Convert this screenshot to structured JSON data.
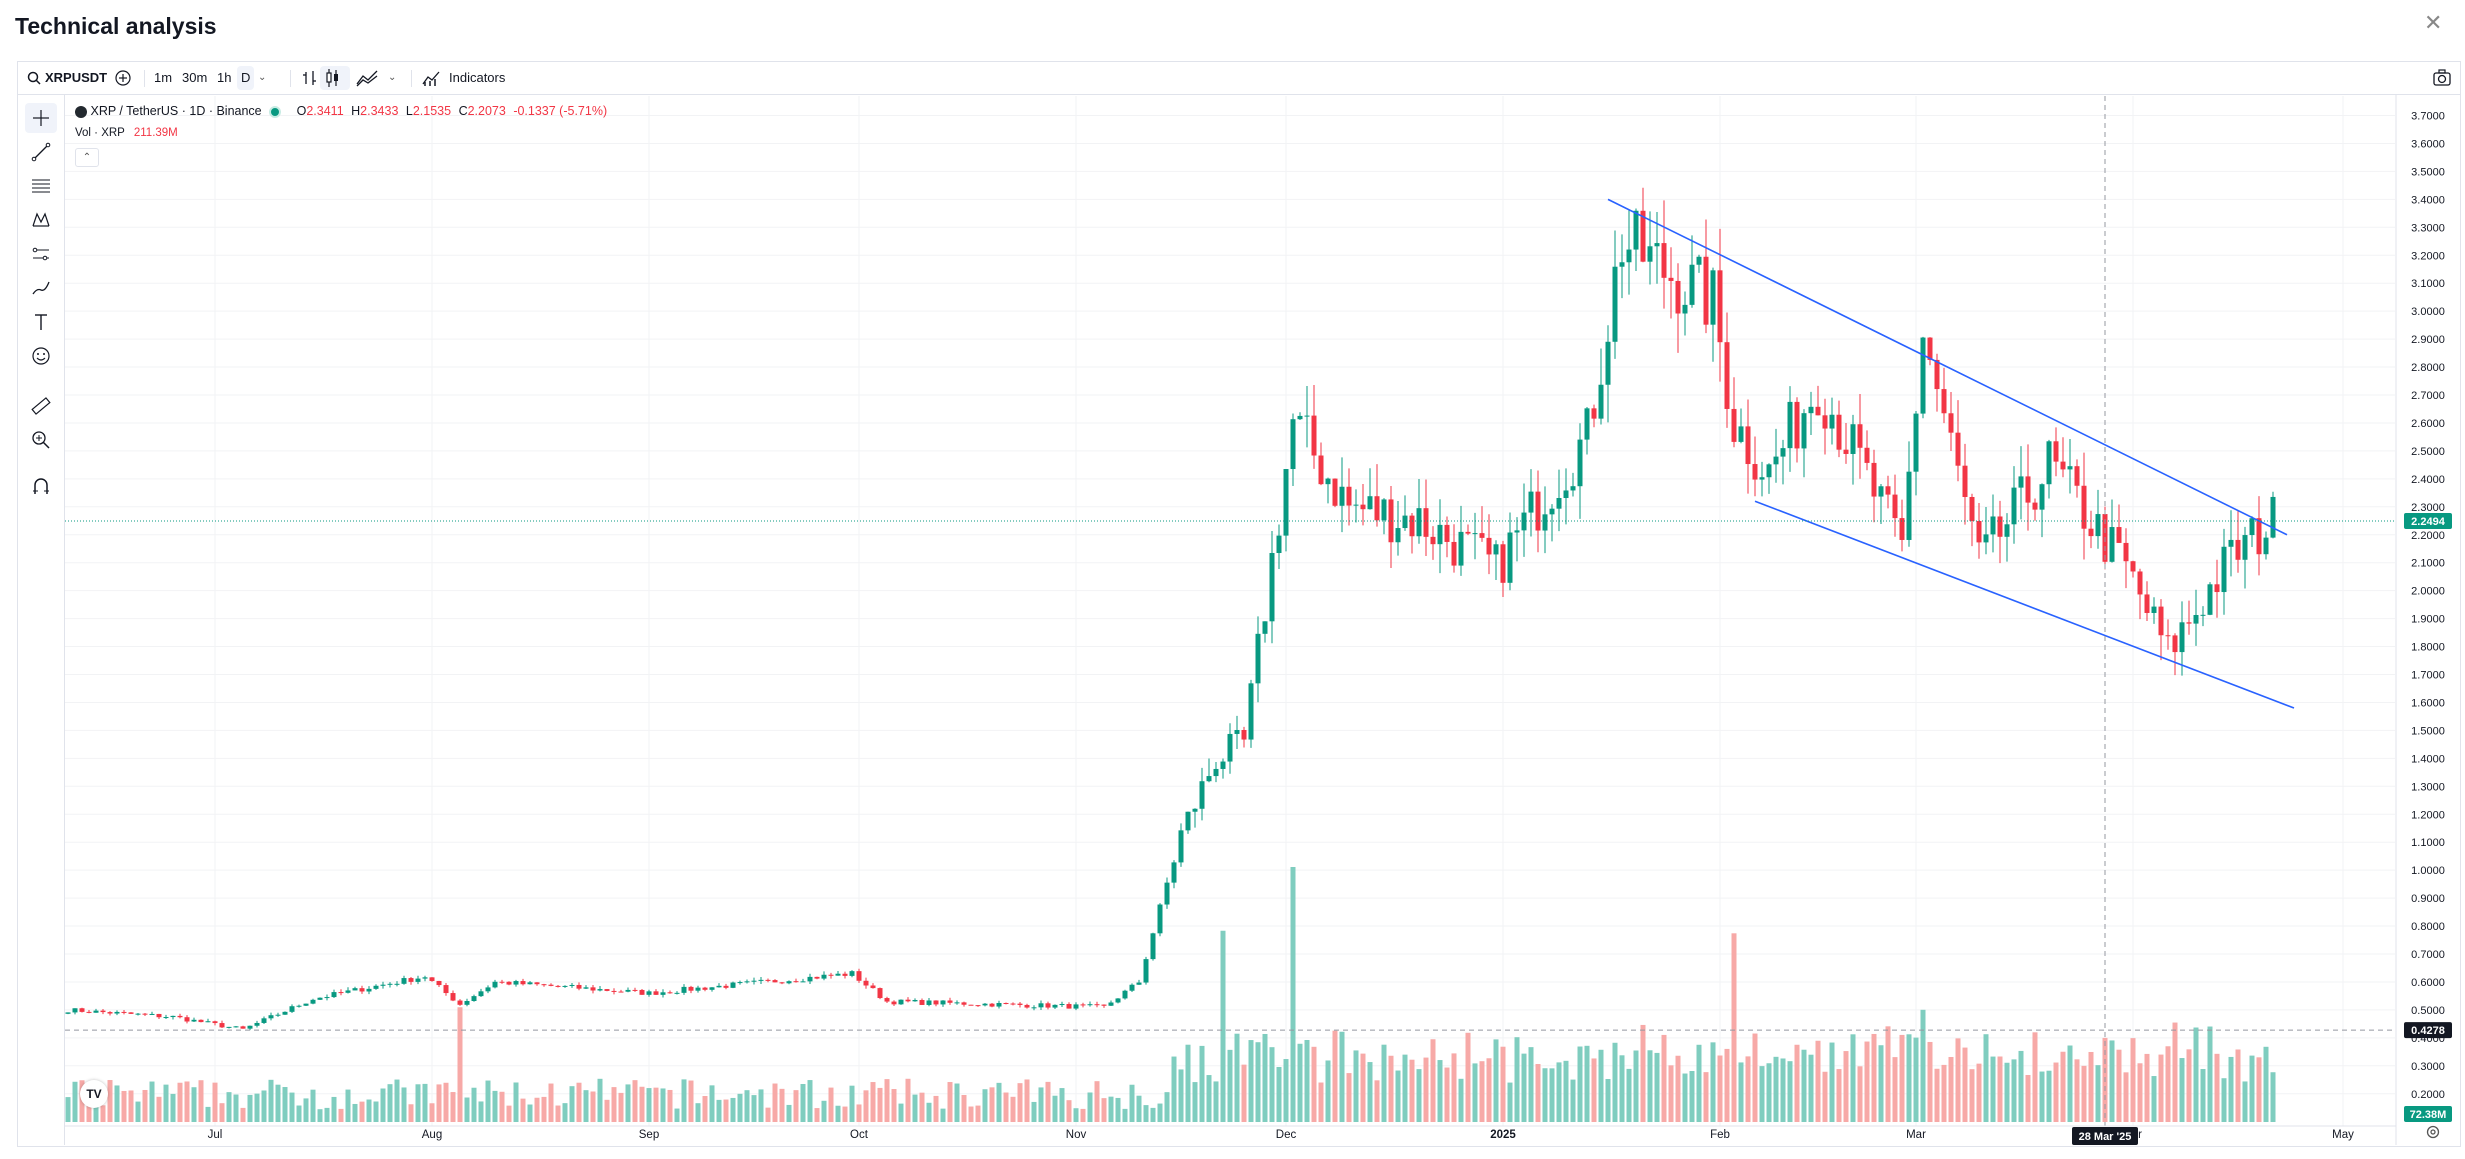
{
  "page": {
    "title": "Technical analysis"
  },
  "toolbar": {
    "symbol": "XRPUSDT",
    "intervals": [
      "1m",
      "30m",
      "1h",
      "D"
    ],
    "active_interval": "D",
    "indicators_label": "Indicators"
  },
  "legend": {
    "symbol_line": "XRP / TetherUS · 1D · Binance",
    "open_label": "O",
    "open": "2.3411",
    "high_label": "H",
    "high": "2.3433",
    "low_label": "L",
    "low": "2.1535",
    "close_label": "C",
    "close": "2.2073",
    "change": "-0.1337 (-5.71%)",
    "vol_label": "Vol · XRP",
    "vol_value": "211.39M"
  },
  "colors": {
    "up": "#089981",
    "down": "#f23645",
    "up_vol": "#7fcdbf",
    "down_vol": "#f7a9a7",
    "trendline": "#2962ff"
  },
  "icons": {
    "tools": [
      "crosshair-icon",
      "trendline-icon",
      "fib-icon",
      "pattern-icon",
      "forecast-icon",
      "brush-icon",
      "text-icon",
      "emoji-icon",
      "ruler-icon",
      "zoom-icon",
      "magnet-icon"
    ],
    "toolbar": [
      "search-icon",
      "add-symbol-icon",
      "bar-style-icon",
      "candle-style-icon",
      "area-style-icon",
      "indicators-icon",
      "camera-icon",
      "close-icon",
      "settings-icon"
    ]
  },
  "price_axis": {
    "ticks": [
      "3.7000",
      "3.6000",
      "3.5000",
      "3.4000",
      "3.3000",
      "3.2000",
      "3.1000",
      "3.0000",
      "2.9000",
      "2.8000",
      "2.7000",
      "2.6000",
      "2.5000",
      "2.4000",
      "2.3000",
      "2.2000",
      "2.1000",
      "2.0000",
      "1.9000",
      "1.8000",
      "1.7000",
      "1.6000",
      "1.5000",
      "1.4000",
      "1.3000",
      "1.2000",
      "1.1000",
      "1.0000",
      "0.9000",
      "0.8000",
      "0.7000",
      "0.6000",
      "0.5000",
      "0.4000",
      "0.3000",
      "0.2000"
    ],
    "last_price_label": "2.2494",
    "crosshair_price_label": "0.4278"
  },
  "time_axis": {
    "labels": [
      "Jul",
      "Aug",
      "Sep",
      "Oct",
      "Nov",
      "Dec",
      "2025",
      "Feb",
      "Mar",
      "Apr",
      "May"
    ],
    "crosshair_label": "28 Mar '25"
  },
  "chart_data": {
    "type": "candlestick",
    "symbol": "XRP / TetherUS",
    "interval": "1D",
    "ylim": [
      0.15,
      3.75
    ],
    "keyframes": [
      {
        "date": "2024-06-10",
        "close": 0.5
      },
      {
        "date": "2024-06-25",
        "close": 0.475
      },
      {
        "date": "2024-07-05",
        "close": 0.43
      },
      {
        "date": "2024-07-15",
        "close": 0.54
      },
      {
        "date": "2024-07-31",
        "close": 0.62
      },
      {
        "date": "2024-08-05",
        "close": 0.52
      },
      {
        "date": "2024-08-10",
        "close": 0.6
      },
      {
        "date": "2024-09-01",
        "close": 0.56
      },
      {
        "date": "2024-09-30",
        "close": 0.63
      },
      {
        "date": "2024-10-05",
        "close": 0.53
      },
      {
        "date": "2024-11-05",
        "close": 0.51
      },
      {
        "date": "2024-11-10",
        "close": 0.6
      },
      {
        "date": "2024-11-16",
        "close": 1.13
      },
      {
        "date": "2024-11-21",
        "close": 1.4
      },
      {
        "date": "2024-11-25",
        "close": 1.45
      },
      {
        "date": "2024-12-02",
        "close": 2.6
      },
      {
        "date": "2024-12-10",
        "close": 2.3
      },
      {
        "date": "2024-12-20",
        "close": 2.25
      },
      {
        "date": "2024-12-31",
        "close": 2.08
      },
      {
        "date": "2025-01-07",
        "close": 2.35
      },
      {
        "date": "2025-01-13",
        "close": 2.55
      },
      {
        "date": "2025-01-18",
        "close": 3.25
      },
      {
        "date": "2025-01-31",
        "close": 3.03
      },
      {
        "date": "2025-02-03",
        "close": 2.6
      },
      {
        "date": "2025-02-08",
        "close": 2.42
      },
      {
        "date": "2025-02-15",
        "close": 2.75
      },
      {
        "date": "2025-02-27",
        "close": 2.15
      },
      {
        "date": "2025-03-02",
        "close": 2.93
      },
      {
        "date": "2025-03-10",
        "close": 2.1
      },
      {
        "date": "2025-03-20",
        "close": 2.45
      },
      {
        "date": "2025-03-31",
        "close": 2.08
      },
      {
        "date": "2025-04-06",
        "close": 1.78
      },
      {
        "date": "2025-04-15",
        "close": 2.12
      },
      {
        "date": "2025-04-21",
        "close": 2.25
      }
    ],
    "volume_spikes": [
      {
        "date": "2024-08-05",
        "value": 0.45
      },
      {
        "date": "2024-11-22",
        "value": 0.75
      },
      {
        "date": "2024-12-02",
        "value": 1.0
      },
      {
        "date": "2025-02-03",
        "value": 0.74
      },
      {
        "date": "2025-03-02",
        "value": 0.44
      },
      {
        "date": "2025-04-07",
        "value": 0.39
      }
    ],
    "trendlines": [
      {
        "from": {
          "date": "2025-01-16",
          "price": 3.4
        },
        "to": {
          "date": "2025-04-23",
          "price": 2.2
        }
      },
      {
        "from": {
          "date": "2025-02-06",
          "price": 2.32
        },
        "to": {
          "date": "2025-04-24",
          "price": 1.58
        }
      }
    ]
  }
}
